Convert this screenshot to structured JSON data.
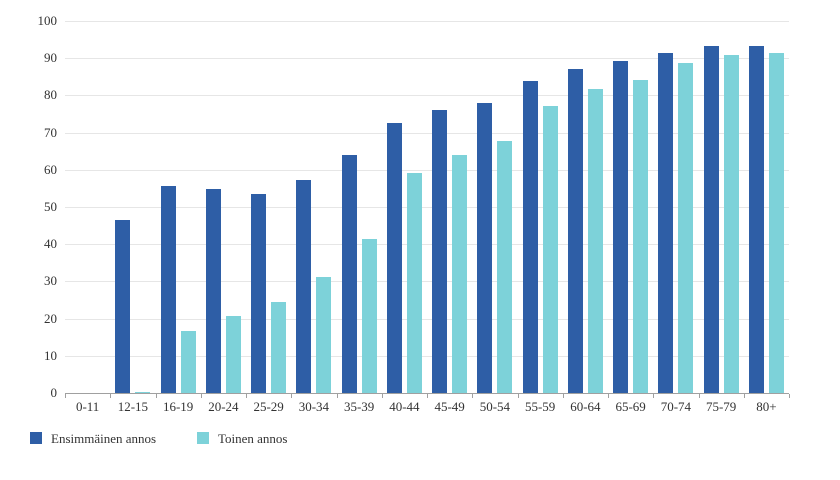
{
  "chart_data": {
    "type": "bar",
    "title": "",
    "xlabel": "",
    "ylabel": "",
    "categories": [
      "0-11",
      "12-15",
      "16-19",
      "20-24",
      "25-29",
      "30-34",
      "35-39",
      "40-44",
      "45-49",
      "50-54",
      "55-59",
      "60-64",
      "65-69",
      "70-74",
      "75-79",
      "80+"
    ],
    "series": [
      {
        "name": "Ensimmäinen annos",
        "color": "#2E5EA6",
        "values": [
          0,
          46.5,
          55.7,
          54.8,
          53.5,
          57.3,
          64.0,
          72.5,
          76.0,
          78.0,
          83.8,
          87.0,
          89.2,
          91.5,
          93.2,
          93.4
        ]
      },
      {
        "name": "Toinen annos",
        "color": "#7DD2D9",
        "values": [
          0,
          0.4,
          16.7,
          20.8,
          24.6,
          31.1,
          41.3,
          59.2,
          64.1,
          67.8,
          77.1,
          81.8,
          84.2,
          88.7,
          90.8,
          91.3
        ]
      }
    ],
    "ylim": [
      0,
      100
    ],
    "y_ticks": [
      0,
      10,
      20,
      30,
      40,
      50,
      60,
      70,
      80,
      90,
      100
    ],
    "grid": true,
    "legend_position": "bottom-left"
  },
  "colors": {
    "background": "#FFFFFF",
    "gridline": "#E6E6E6",
    "axis_line": "#A0A0A0",
    "text": "#333333",
    "first_dose": "#2E5EA6",
    "second_dose": "#7DD2D9"
  }
}
